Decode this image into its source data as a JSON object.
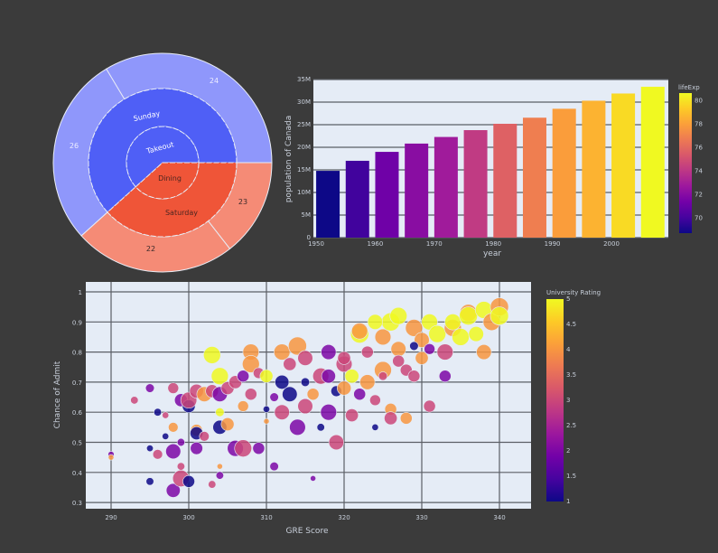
{
  "chart_data": [
    {
      "type": "sunburst",
      "rings": {
        "inner": [
          {
            "label": "Takeout",
            "color": "#4f5ff6"
          },
          {
            "label": "Dining",
            "color": "#ef5538"
          }
        ],
        "middle": [
          {
            "label": "Sunday",
            "parent": "Takeout",
            "color": "#4f5ff6"
          },
          {
            "label": "Saturday",
            "parent": "Dining",
            "color": "#ef5538"
          }
        ],
        "outer": [
          {
            "label": "24",
            "parent": "Sunday",
            "color": "#8f97fb"
          },
          {
            "label": "26",
            "parent": "Sunday",
            "color": "#8f97fb"
          },
          {
            "label": "23",
            "parent": "Saturday",
            "color": "#f58b76"
          },
          {
            "label": "22",
            "parent": "Saturday",
            "color": "#f58b76"
          }
        ]
      }
    },
    {
      "type": "bar",
      "x": [
        1952,
        1957,
        1962,
        1967,
        1972,
        1977,
        1982,
        1987,
        1992,
        1997,
        2002,
        2007
      ],
      "values": [
        14785584,
        17010154,
        18985849,
        20819767,
        22284500,
        23796400,
        25201900,
        26549700,
        28523502,
        30305843,
        31902268,
        33390141
      ],
      "color_values": [
        68.75,
        69.96,
        71.3,
        72.13,
        72.88,
        74.21,
        75.76,
        76.86,
        77.95,
        78.61,
        79.77,
        80.653
      ],
      "xlabel": "year",
      "ylabel": "population of Canada",
      "ylim": [
        0,
        35000000
      ],
      "yticks": [
        "0",
        "5M",
        "10M",
        "15M",
        "20M",
        "25M",
        "30M",
        "35M"
      ],
      "xticks": [
        "1950",
        "1960",
        "1970",
        "1980",
        "1990",
        "2000"
      ],
      "colorbar": {
        "title": "lifeExp",
        "ticks": [
          "70",
          "72",
          "74",
          "76",
          "78",
          "80"
        ],
        "colorscale": "Plasma"
      },
      "grid": true
    },
    {
      "type": "scatter",
      "xlabel": "GRE Score",
      "ylabel": "Chance of Admit",
      "xlim": [
        287,
        346
      ],
      "ylim": [
        0.28,
        1.03
      ],
      "xticks": [
        "290",
        "300",
        "310",
        "320",
        "330",
        "340"
      ],
      "yticks": [
        "0.3",
        "0.4",
        "0.5",
        "0.6",
        "0.7",
        "0.8",
        "0.9",
        "1"
      ],
      "colorbar": {
        "title": "University Rating",
        "ticks": [
          "1",
          "1.5",
          "2",
          "2.5",
          "3",
          "3.5",
          "4",
          "4.5",
          "5"
        ],
        "colorscale": "Plasma"
      },
      "grid": true,
      "point_fields": [
        "gre",
        "chance",
        "rating",
        "size"
      ],
      "points": [
        [
          290,
          0.46,
          2,
          7.5
        ],
        [
          290,
          0.45,
          4,
          7.4
        ],
        [
          293,
          0.64,
          3,
          7.8
        ],
        [
          295,
          0.68,
          2,
          8.0
        ],
        [
          295,
          0.48,
          1,
          7.6
        ],
        [
          295,
          0.37,
          1,
          7.8
        ],
        [
          296,
          0.6,
          1,
          7.8
        ],
        [
          296,
          0.46,
          3,
          8.2
        ],
        [
          297,
          0.52,
          1,
          7.6
        ],
        [
          297,
          0.59,
          3,
          7.6
        ],
        [
          298,
          0.55,
          4,
          8.2
        ],
        [
          298,
          0.68,
          3,
          8.4
        ],
        [
          298,
          0.47,
          2,
          9.2
        ],
        [
          298,
          0.34,
          2,
          9.0
        ],
        [
          299,
          0.64,
          2,
          8.8
        ],
        [
          299,
          0.5,
          2,
          7.8
        ],
        [
          299,
          0.42,
          3,
          7.8
        ],
        [
          299,
          0.38,
          3,
          9.5
        ],
        [
          300,
          0.62,
          1,
          8.8
        ],
        [
          300,
          0.37,
          1,
          8.6
        ],
        [
          300,
          0.64,
          3,
          9.4
        ],
        [
          301,
          0.67,
          3,
          9.0
        ],
        [
          301,
          0.54,
          4,
          8.6
        ],
        [
          301,
          0.53,
          1,
          8.8
        ],
        [
          301,
          0.48,
          2,
          8.7
        ],
        [
          302,
          0.52,
          3,
          8.2
        ],
        [
          302,
          0.66,
          4,
          9.2
        ],
        [
          303,
          0.79,
          5,
          9.6
        ],
        [
          303,
          0.67,
          3,
          8.8
        ],
        [
          303,
          0.36,
          3,
          7.8
        ],
        [
          304,
          0.72,
          5,
          9.6
        ],
        [
          304,
          0.66,
          2,
          9.2
        ],
        [
          304,
          0.6,
          5,
          8.0
        ],
        [
          304,
          0.55,
          1,
          9.0
        ],
        [
          304,
          0.42,
          4,
          7.4
        ],
        [
          304,
          0.39,
          2,
          7.8
        ],
        [
          305,
          0.56,
          4,
          8.8
        ],
        [
          305,
          0.68,
          3,
          8.8
        ],
        [
          306,
          0.48,
          2,
          9.4
        ],
        [
          306,
          0.7,
          3,
          8.8
        ],
        [
          307,
          0.62,
          4,
          8.4
        ],
        [
          307,
          0.48,
          3,
          9.6
        ],
        [
          307,
          0.72,
          2,
          8.6
        ],
        [
          308,
          0.8,
          4,
          9.4
        ],
        [
          308,
          0.76,
          4,
          9.6
        ],
        [
          308,
          0.66,
          3,
          8.6
        ],
        [
          309,
          0.48,
          2,
          8.6
        ],
        [
          309,
          0.73,
          3,
          8.4
        ],
        [
          310,
          0.61,
          1,
          7.6
        ],
        [
          310,
          0.57,
          4,
          7.4
        ],
        [
          310,
          0.72,
          5,
          8.8
        ],
        [
          311,
          0.65,
          2,
          8.0
        ],
        [
          311,
          0.42,
          2,
          8.0
        ],
        [
          312,
          0.8,
          4,
          9.4
        ],
        [
          312,
          0.7,
          1,
          9.0
        ],
        [
          312,
          0.6,
          3,
          9.2
        ],
        [
          313,
          0.66,
          1,
          9.2
        ],
        [
          313,
          0.76,
          3,
          8.8
        ],
        [
          314,
          0.82,
          4,
          9.8
        ],
        [
          314,
          0.55,
          2,
          9.4
        ],
        [
          315,
          0.7,
          1,
          8.0
        ],
        [
          315,
          0.62,
          3,
          9.2
        ],
        [
          315,
          0.78,
          3,
          9.2
        ],
        [
          316,
          0.66,
          4,
          8.6
        ],
        [
          316,
          0.38,
          2,
          7.4
        ],
        [
          317,
          0.72,
          3,
          9.4
        ],
        [
          317,
          0.55,
          1,
          7.8
        ],
        [
          318,
          0.6,
          2,
          9.4
        ],
        [
          318,
          0.72,
          2,
          9.0
        ],
        [
          319,
          0.67,
          1,
          8.4
        ],
        [
          319,
          0.5,
          3,
          9.2
        ],
        [
          320,
          0.68,
          4,
          9.0
        ],
        [
          320,
          0.76,
          3,
          9.4
        ],
        [
          321,
          0.59,
          3,
          8.8
        ],
        [
          321,
          0.72,
          5,
          9.0
        ],
        [
          322,
          0.66,
          2,
          8.6
        ],
        [
          322,
          0.86,
          5,
          9.8
        ],
        [
          323,
          0.7,
          4,
          9.2
        ],
        [
          323,
          0.8,
          3,
          8.6
        ],
        [
          324,
          0.64,
          3,
          8.4
        ],
        [
          324,
          0.55,
          1,
          7.6
        ],
        [
          325,
          0.74,
          4,
          9.6
        ],
        [
          325,
          0.85,
          4,
          9.4
        ],
        [
          326,
          0.61,
          4,
          8.6
        ],
        [
          326,
          0.9,
          5,
          9.8
        ],
        [
          326,
          0.58,
          3,
          8.8
        ],
        [
          327,
          0.81,
          4,
          9.2
        ],
        [
          327,
          0.77,
          3,
          8.6
        ],
        [
          328,
          0.74,
          3,
          8.6
        ],
        [
          328,
          0.58,
          4,
          8.6
        ],
        [
          329,
          0.88,
          4,
          9.6
        ],
        [
          329,
          0.72,
          3,
          8.6
        ],
        [
          330,
          0.84,
          4,
          9.2
        ],
        [
          330,
          0.78,
          4,
          8.8
        ],
        [
          331,
          0.9,
          5,
          9.4
        ],
        [
          331,
          0.62,
          3,
          8.6
        ],
        [
          332,
          0.86,
          5,
          9.6
        ],
        [
          333,
          0.8,
          3,
          9.4
        ],
        [
          333,
          0.72,
          2,
          8.6
        ],
        [
          334,
          0.88,
          4,
          9.6
        ],
        [
          334,
          0.9,
          5,
          9.4
        ],
        [
          335,
          0.85,
          5,
          9.6
        ],
        [
          336,
          0.93,
          4,
          9.6
        ],
        [
          336,
          0.92,
          5,
          9.8
        ],
        [
          338,
          0.8,
          4,
          9.2
        ],
        [
          338,
          0.94,
          5,
          9.6
        ],
        [
          339,
          0.9,
          4,
          9.6
        ],
        [
          340,
          0.95,
          4,
          9.8
        ],
        [
          340,
          0.92,
          5,
          9.8
        ],
        [
          337,
          0.86,
          5,
          9.2
        ],
        [
          324,
          0.9,
          5,
          9.2
        ],
        [
          322,
          0.87,
          4,
          9.4
        ],
        [
          329,
          0.82,
          1,
          8.0
        ],
        [
          331,
          0.81,
          2,
          8.4
        ],
        [
          327,
          0.92,
          5,
          9.6
        ],
        [
          320,
          0.78,
          3,
          8.8
        ],
        [
          318,
          0.8,
          2,
          9.2
        ],
        [
          325,
          0.72,
          3,
          8.0
        ]
      ]
    }
  ]
}
